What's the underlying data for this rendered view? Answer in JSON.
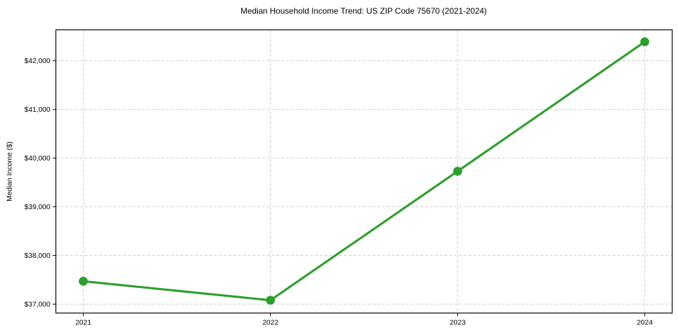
{
  "figure": {
    "background": "#ffffff",
    "text_color": "#000000",
    "grid_color": "#cccccc",
    "axis_color": "#000000"
  },
  "chart_data": {
    "type": "line",
    "title": "Median Household Income Trend: US ZIP Code 75670 (2021-2024)",
    "xlabel": "",
    "ylabel": "Median Income ($)",
    "categories": [
      "2021",
      "2022",
      "2023",
      "2024"
    ],
    "series": [
      {
        "name": "Median Household Income",
        "values": [
          37470,
          37080,
          39730,
          42390
        ],
        "color": "#2ca02c",
        "marker": "circle"
      }
    ],
    "y_ticks": [
      37000,
      38000,
      39000,
      40000,
      41000,
      42000
    ],
    "y_tick_labels": [
      "$37,000",
      "$38,000",
      "$39,000",
      "$40,000",
      "$41,000",
      "$42,000"
    ],
    "ylim": [
      36817,
      42636
    ],
    "grid": "both-dashed",
    "legend_position": "none"
  }
}
